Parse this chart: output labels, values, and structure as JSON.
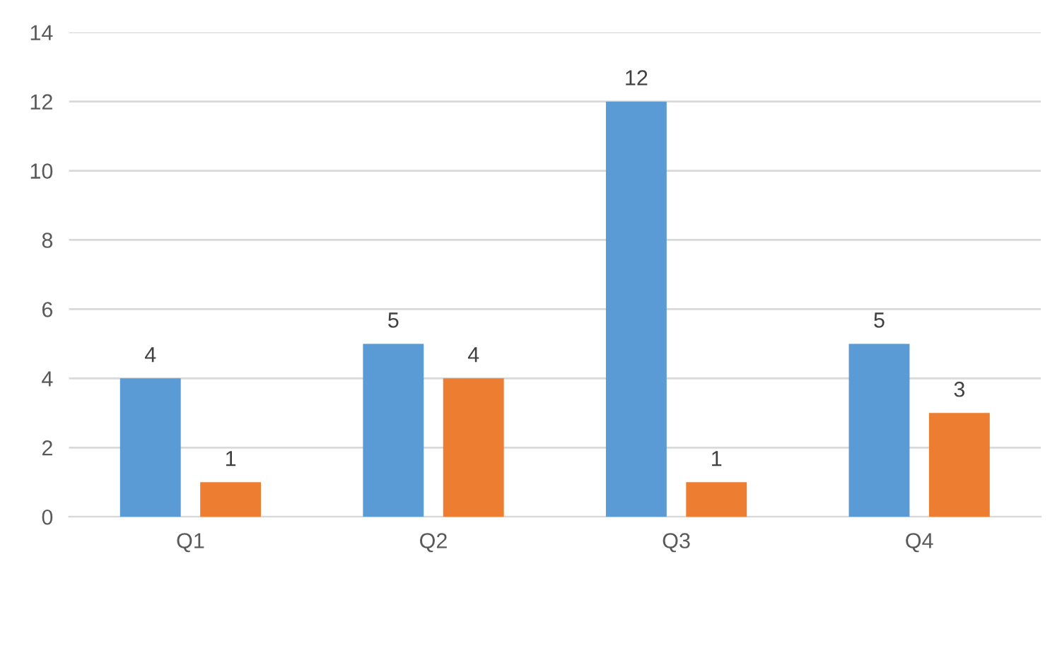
{
  "chart_data": {
    "type": "bar",
    "categories": [
      "Q1",
      "Q2",
      "Q3",
      "Q4"
    ],
    "series": [
      {
        "color": "#5b9bd5",
        "values": [
          4,
          5,
          12,
          5
        ]
      },
      {
        "color": "#ed7d31",
        "values": [
          1,
          4,
          1,
          3
        ]
      }
    ],
    "ylim": [
      0,
      14
    ],
    "yticks": [
      0,
      2,
      4,
      6,
      8,
      10,
      12,
      14
    ],
    "grid": "y",
    "data_labels": true
  }
}
